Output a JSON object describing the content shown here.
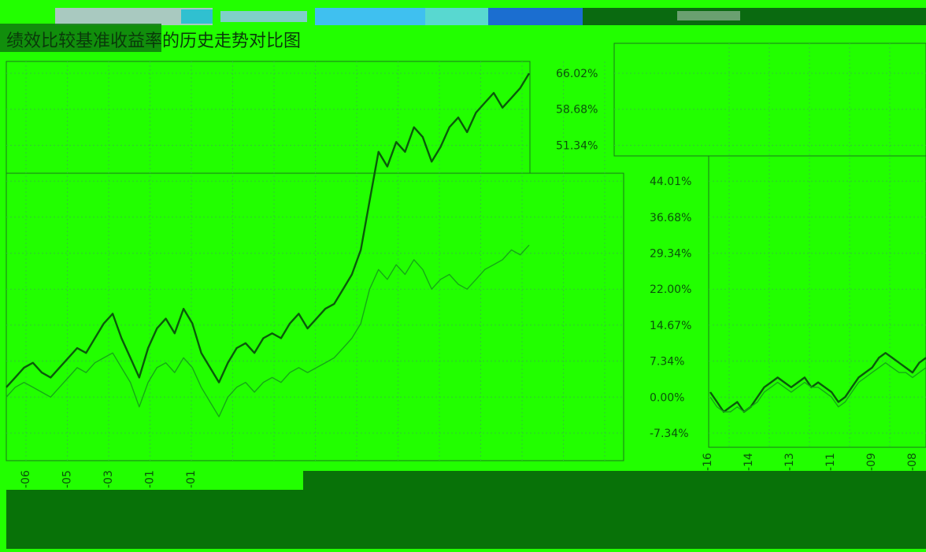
{
  "title": "绩效比较基准收益率的历史走势对比图",
  "chart_data": [
    {
      "type": "line",
      "title": "绩效比较基准收益率的历史走势对比图",
      "y_ticks": [
        "66.02%",
        "58.68%",
        "51.34%",
        "44.01%",
        "36.68%",
        "29.34%",
        "22.00%",
        "14.67%",
        "7.34%",
        "0.00%",
        "-7.34%"
      ],
      "y_tick_values": [
        66.02,
        58.68,
        51.34,
        44.01,
        36.68,
        29.34,
        22.0,
        14.67,
        7.34,
        0.0,
        -7.34
      ],
      "ylim": [
        -7.34,
        66.02
      ],
      "x_ticks": [
        "-06",
        "-05",
        "-03",
        "-01",
        "-01"
      ],
      "grid": true,
      "series": [
        {
          "values": [
            2,
            4,
            6,
            7,
            5,
            4,
            6,
            8,
            10,
            9,
            12,
            15,
            17,
            12,
            8,
            4,
            10,
            14,
            16,
            13,
            18,
            15,
            9,
            6,
            3,
            7,
            10,
            11,
            9,
            12,
            13,
            12,
            15,
            17,
            14,
            16,
            18,
            19,
            22,
            25,
            30,
            40,
            50,
            47,
            52,
            50,
            55,
            53,
            48,
            51,
            55,
            57,
            54,
            58,
            60,
            62,
            59,
            61,
            63,
            66
          ]
        },
        {
          "values": [
            0,
            2,
            3,
            2,
            1,
            0,
            2,
            4,
            6,
            5,
            7,
            8,
            9,
            6,
            3,
            -2,
            3,
            6,
            7,
            5,
            8,
            6,
            2,
            -1,
            -4,
            0,
            2,
            3,
            1,
            3,
            4,
            3,
            5,
            6,
            5,
            6,
            7,
            8,
            10,
            12,
            15,
            22,
            26,
            24,
            27,
            25,
            28,
            26,
            22,
            24,
            25,
            23,
            22,
            24,
            26,
            27,
            28,
            30,
            29,
            31
          ]
        }
      ]
    },
    {
      "type": "line",
      "x_ticks": [
        "-16",
        "-14",
        "-13",
        "-11",
        "-09",
        "-08"
      ],
      "ylim": [
        -7.34,
        66.02
      ],
      "grid": true,
      "series": [
        {
          "values": [
            1,
            -1,
            -3,
            -2,
            -1,
            -3,
            -2,
            0,
            2,
            3,
            4,
            3,
            2,
            3,
            4,
            2,
            3,
            2,
            1,
            -1,
            0,
            2,
            4,
            5,
            6,
            8,
            9,
            8,
            7,
            6,
            5,
            7,
            8
          ]
        },
        {
          "values": [
            0,
            -2,
            -3,
            -3,
            -2,
            -3,
            -2,
            -1,
            1,
            2,
            3,
            2,
            1,
            2,
            3,
            2,
            2,
            1,
            0,
            -2,
            -1,
            1,
            3,
            4,
            5,
            6,
            7,
            6,
            5,
            5,
            4,
            5,
            6
          ]
        }
      ]
    }
  ]
}
